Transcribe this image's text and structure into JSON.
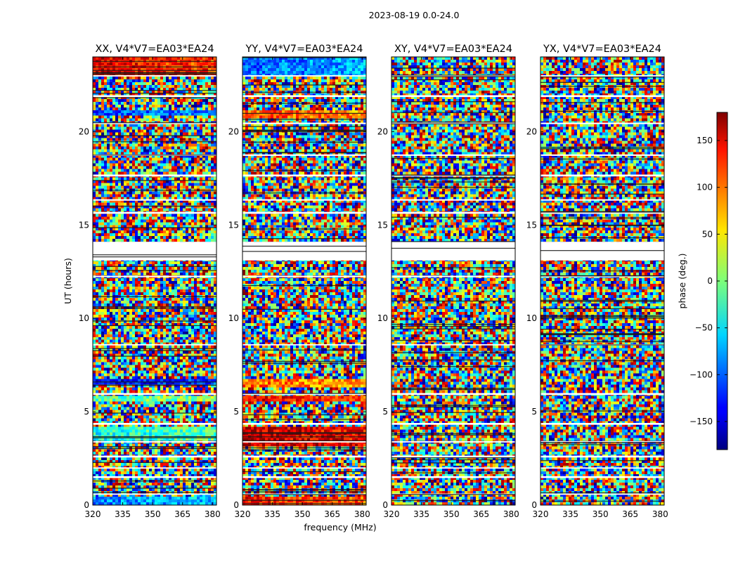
{
  "chart_data": {
    "type": "heatmap",
    "suptitle": "2023-08-19 0.0-24.0",
    "xlabel": "frequency (MHz)",
    "ylabel": "UT (hours)",
    "xlim": [
      320,
      382
    ],
    "ylim": [
      0,
      24
    ],
    "xticks": [
      320,
      335,
      350,
      365,
      380
    ],
    "xtick_labels": [
      "320",
      "335",
      "350",
      "365",
      "380"
    ],
    "yticks": [
      0,
      5,
      10,
      15,
      20
    ],
    "ytick_labels": [
      "0",
      "5",
      "10",
      "15",
      "20"
    ],
    "colorbar": {
      "label": "phase (deg.)",
      "vmin": -180,
      "vmax": 180,
      "colormap": "jet",
      "ticks": [
        -150,
        -100,
        -50,
        0,
        50,
        100,
        150
      ],
      "tick_labels": [
        "−150",
        "−100",
        "−50",
        "0",
        "50",
        "100",
        "150"
      ]
    },
    "panels": [
      {
        "title": "XX, V4*V7=EA03*EA24"
      },
      {
        "title": "YY, V4*V7=EA03*EA24"
      },
      {
        "title": "XY, V4*V7=EA03*EA24"
      },
      {
        "title": "YX, V4*V7=EA03*EA24"
      }
    ],
    "blank_intervals_ut": [
      [
        0.55,
        0.62
      ],
      [
        1.45,
        1.55
      ],
      [
        1.95,
        2.02
      ],
      [
        2.55,
        2.65
      ],
      [
        3.35,
        3.42
      ],
      [
        4.3,
        4.4
      ],
      [
        5.9,
        6.0
      ],
      [
        8.55,
        8.62
      ],
      [
        12.2,
        12.28
      ],
      [
        13.1,
        14.1
      ],
      [
        15.6,
        15.7
      ],
      [
        16.3,
        16.38
      ],
      [
        17.6,
        17.7
      ],
      [
        18.7,
        18.78
      ],
      [
        20.4,
        20.48
      ],
      [
        21.85,
        21.95
      ],
      [
        22.95,
        23.02
      ]
    ],
    "coherent_bands_ut": [
      {
        "panel": 0,
        "start": 22.9,
        "end": 24.0,
        "phase": 140
      },
      {
        "panel": 0,
        "start": 20.8,
        "end": 21.1,
        "phase": -110
      },
      {
        "panel": 0,
        "start": 6.5,
        "end": 6.8,
        "phase": -140
      },
      {
        "panel": 0,
        "start": 5.6,
        "end": 5.9,
        "phase": -20
      },
      {
        "panel": 0,
        "start": 3.4,
        "end": 4.2,
        "phase": -40
      },
      {
        "panel": 0,
        "start": 0.0,
        "end": 0.5,
        "phase": -90
      },
      {
        "panel": 1,
        "start": 22.9,
        "end": 24.0,
        "phase": -100
      },
      {
        "panel": 1,
        "start": 20.7,
        "end": 21.1,
        "phase": 110
      },
      {
        "panel": 1,
        "start": 6.3,
        "end": 6.8,
        "phase": 100
      },
      {
        "panel": 1,
        "start": 5.6,
        "end": 5.9,
        "phase": 140
      },
      {
        "panel": 1,
        "start": 3.2,
        "end": 4.2,
        "phase": 160
      },
      {
        "panel": 1,
        "start": 0.0,
        "end": 0.5,
        "phase": 130
      }
    ]
  }
}
